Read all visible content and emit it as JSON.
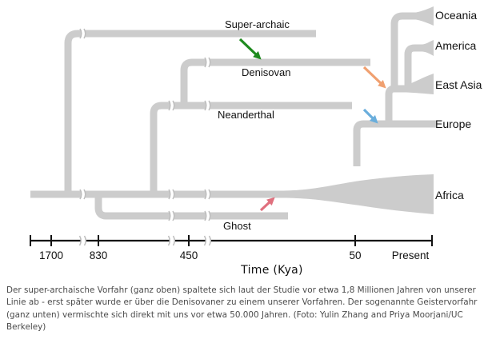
{
  "diagram": {
    "lineages": {
      "super_archaic": "Super-archaic",
      "denisovan": "Denisovan",
      "neanderthal": "Neanderthal",
      "ghost": "Ghost"
    },
    "populations": {
      "oceania": "Oceania",
      "america": "America",
      "east_asia": "East Asia",
      "europe": "Europe",
      "africa": "Africa"
    },
    "axis": {
      "title": "Time (Kya)",
      "ticks": [
        "1700",
        "830",
        "450",
        "50",
        "Present"
      ]
    },
    "colors": {
      "branch": "#cccccc",
      "arrow_green": "#1e8a1e",
      "arrow_orange": "#f0a070",
      "arrow_blue": "#6aaedc",
      "arrow_pink": "#e0707e",
      "axis": "#111111"
    }
  },
  "caption": "Der super-archaische Vorfahr (ganz oben) spaltete sich laut der Studie vor etwa 1,8 Millionen Jahren von unserer Linie ab - erst später wurde er über die Denisovaner zu einem unserer Vorfahren. Der sogenannte Geistervorfahr (ganz unten) vermischte sich direkt mit uns vor etwa 50.000 Jahren. (Foto: Yulin Zhang and Priya Moorjani/UC Berkeley)"
}
